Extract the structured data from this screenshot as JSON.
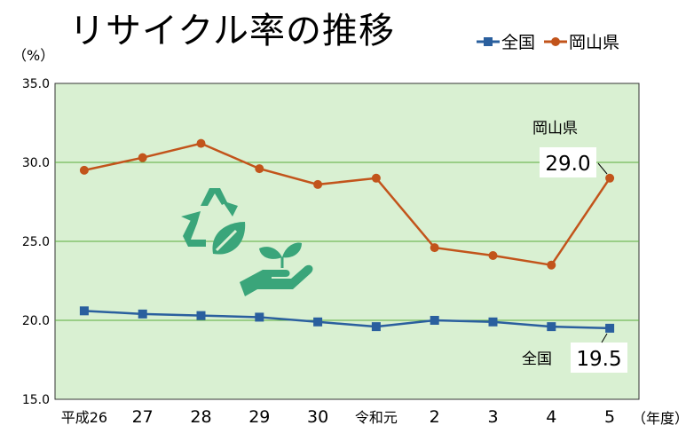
{
  "title": "リサイクル率の推移",
  "y_unit": "（%）",
  "x_unit": "（年度）",
  "legend": [
    {
      "label": "全国",
      "color": "#2a5f9e",
      "marker": "square"
    },
    {
      "label": "岡山県",
      "color": "#c2541b",
      "marker": "circle"
    }
  ],
  "callouts": {
    "okayama": {
      "name": "岡山県",
      "value": "29.0"
    },
    "national": {
      "name": "全国",
      "value": "19.5"
    }
  },
  "icon": "recycle-leaf-hand-icon",
  "colors": {
    "plot_bg": "#d9f0d2",
    "grid": "#5aab3c",
    "icon": "#3aa57a"
  },
  "chart_data": {
    "type": "line",
    "categories": [
      "平成26",
      "27",
      "28",
      "29",
      "30",
      "令和元",
      "2",
      "3",
      "4",
      "5"
    ],
    "series": [
      {
        "name": "全国",
        "values": [
          20.6,
          20.4,
          20.3,
          20.2,
          19.9,
          19.6,
          20.0,
          19.9,
          19.6,
          19.5
        ]
      },
      {
        "name": "岡山県",
        "values": [
          29.5,
          30.3,
          31.2,
          29.6,
          28.6,
          29.0,
          24.6,
          24.1,
          23.5,
          29.0
        ]
      }
    ],
    "ylim": [
      15.0,
      35.0
    ],
    "yticks": [
      "15.0",
      "20.0",
      "25.0",
      "30.0",
      "35.0"
    ],
    "grid": true,
    "legend_position": "top-right"
  }
}
